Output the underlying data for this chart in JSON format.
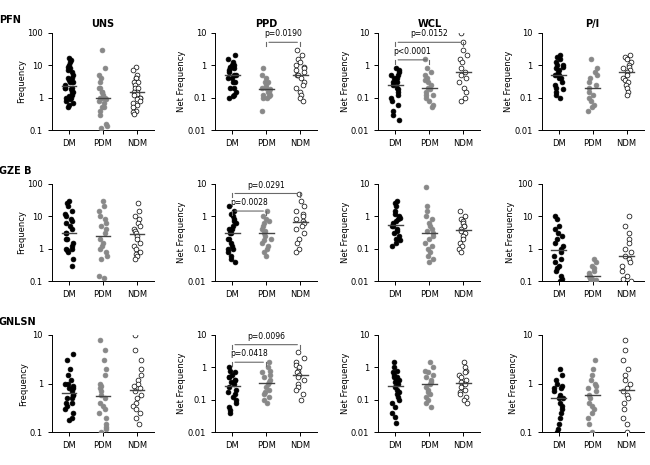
{
  "col_titles": [
    "UNS",
    "PPD",
    "WCL",
    "P/I"
  ],
  "row_titles": [
    "PFN",
    "GZE B",
    "GNLSN"
  ],
  "group_labels": [
    "DM",
    "PDM",
    "NDM"
  ],
  "group_colors": [
    "#000000",
    "#888888",
    "#ffffff"
  ],
  "group_edge_colors": [
    "#000000",
    "#888888",
    "#000000"
  ],
  "panels": {
    "PFN_UNS": {
      "ylim": [
        0.1,
        100
      ],
      "yticks": [
        0.1,
        1,
        10,
        100
      ],
      "ylabel": "Frequency"
    },
    "PFN_PPD": {
      "ylim": [
        0.01,
        10
      ],
      "yticks": [
        0.01,
        0.1,
        1,
        10
      ],
      "ylabel": "Net Frequency"
    },
    "PFN_WCL": {
      "ylim": [
        0.01,
        10
      ],
      "yticks": [
        0.01,
        0.1,
        1,
        10
      ],
      "ylabel": "Net Frequency"
    },
    "PFN_P/I": {
      "ylim": [
        0.01,
        10
      ],
      "yticks": [
        0.01,
        0.1,
        1,
        10
      ],
      "ylabel": "Net Frequency"
    },
    "GZE B_UNS": {
      "ylim": [
        0.1,
        100
      ],
      "yticks": [
        0.1,
        1,
        10,
        100
      ],
      "ylabel": "Frequency"
    },
    "GZE B_PPD": {
      "ylim": [
        0.01,
        10
      ],
      "yticks": [
        0.01,
        0.1,
        1,
        10
      ],
      "ylabel": "Net Frequency"
    },
    "GZE B_WCL": {
      "ylim": [
        0.01,
        10
      ],
      "yticks": [
        0.01,
        0.1,
        1,
        10
      ],
      "ylabel": "Net Frequency"
    },
    "GZE B_P/I": {
      "ylim": [
        0.1,
        100
      ],
      "yticks": [
        0.1,
        1,
        10,
        100
      ],
      "ylabel": "Net Frequency"
    },
    "GNLSN_UNS": {
      "ylim": [
        0.1,
        10
      ],
      "yticks": [
        0.1,
        1,
        10
      ],
      "ylabel": "Frequency"
    },
    "GNLSN_PPD": {
      "ylim": [
        0.01,
        10
      ],
      "yticks": [
        0.01,
        0.1,
        1,
        10
      ],
      "ylabel": "Net Frequency"
    },
    "GNLSN_WCL": {
      "ylim": [
        0.01,
        10
      ],
      "yticks": [
        0.01,
        0.1,
        1,
        10
      ],
      "ylabel": "Net Frequency"
    },
    "GNLSN_P/I": {
      "ylim": [
        0.1,
        10
      ],
      "yticks": [
        0.1,
        1,
        10
      ],
      "ylabel": "Net Frequency"
    }
  },
  "sig_info": {
    "PFN_PPD": [
      {
        "g1": 1,
        "g2": 2,
        "p": "p=0.0190",
        "level": 0
      }
    ],
    "PFN_WCL": [
      {
        "g1": 0,
        "g2": 2,
        "p": "p=0.0152",
        "level": 0
      },
      {
        "g1": 0,
        "g2": 1,
        "p": "p<0.0001",
        "level": 1
      }
    ],
    "GZE B_PPD": [
      {
        "g1": 0,
        "g2": 2,
        "p": "p=0.0291",
        "level": 0
      },
      {
        "g1": 0,
        "g2": 1,
        "p": "p=0.0028",
        "level": 1
      }
    ],
    "GNLSN_PPD": [
      {
        "g1": 0,
        "g2": 2,
        "p": "p=0.0096",
        "level": 0
      },
      {
        "g1": 0,
        "g2": 1,
        "p": "p=0.0418",
        "level": 1
      }
    ]
  },
  "data": {
    "PFN_UNS_DM": [
      16,
      14,
      12,
      10,
      9,
      8,
      7,
      6,
      5,
      4,
      4,
      3.5,
      3,
      3,
      2.5,
      2,
      2,
      2,
      1.8,
      1.5,
      1.5,
      1.2,
      1.1,
      1,
      1,
      0.9,
      0.8,
      0.7,
      0.6,
      0.5
    ],
    "PFN_UNS_PDM": [
      30,
      8,
      5,
      4,
      3,
      2,
      2,
      1.5,
      1.5,
      1.2,
      1,
      1,
      1,
      0.9,
      0.8,
      0.7,
      0.5,
      0.5,
      0.4,
      0.3,
      0.15,
      0.13,
      0.12
    ],
    "PFN_UNS_NDM": [
      9,
      7,
      5,
      4,
      4,
      3,
      3,
      3,
      2.5,
      2,
      2,
      1.5,
      1.5,
      1.3,
      1.2,
      1,
      1,
      0.9,
      0.8,
      0.7,
      0.6,
      0.5,
      0.4,
      0.35,
      0.32
    ],
    "PFN_PPD_DM": [
      2,
      1.5,
      1.2,
      1,
      1,
      0.9,
      0.8,
      0.8,
      0.7,
      0.6,
      0.5,
      0.5,
      0.4,
      0.4,
      0.3,
      0.3,
      0.2,
      0.2,
      0.15,
      0.12,
      0.11,
      0.1
    ],
    "PFN_PPD_PDM": [
      0.8,
      0.5,
      0.4,
      0.3,
      0.3,
      0.25,
      0.2,
      0.2,
      0.18,
      0.15,
      0.15,
      0.12,
      0.12,
      0.11,
      0.1,
      0.1,
      0.04
    ],
    "PFN_PPD_NDM": [
      3,
      2,
      1.5,
      1.2,
      1,
      0.9,
      0.8,
      0.7,
      0.6,
      0.5,
      0.5,
      0.4,
      0.3,
      0.25,
      0.2,
      0.15,
      0.12,
      0.1,
      0.08
    ],
    "PFN_WCL_DM": [
      0.8,
      0.7,
      0.6,
      0.5,
      0.5,
      0.4,
      0.4,
      0.35,
      0.3,
      0.3,
      0.25,
      0.2,
      0.18,
      0.15,
      0.12,
      0.1,
      0.08,
      0.06,
      0.04,
      0.03,
      0.02
    ],
    "PFN_WCL_PDM": [
      1.5,
      0.8,
      0.6,
      0.5,
      0.4,
      0.35,
      0.3,
      0.25,
      0.2,
      0.18,
      0.15,
      0.12,
      0.12,
      0.1,
      0.08,
      0.06,
      0.05
    ],
    "PFN_WCL_NDM": [
      10,
      5,
      3,
      2,
      1.5,
      1.2,
      0.8,
      0.6,
      0.5,
      0.4,
      0.3,
      0.2,
      0.15,
      0.1,
      0.08
    ],
    "PFN_P/I_DM": [
      2,
      1.8,
      1.5,
      1.2,
      1,
      1,
      0.9,
      0.8,
      0.7,
      0.6,
      0.5,
      0.5,
      0.4,
      0.4,
      0.3,
      0.25,
      0.2,
      0.18,
      0.15,
      0.12,
      0.1
    ],
    "PFN_P/I_PDM": [
      1.5,
      0.8,
      0.6,
      0.5,
      0.4,
      0.3,
      0.25,
      0.2,
      0.15,
      0.12,
      0.1,
      0.08,
      0.06,
      0.05,
      0.04
    ],
    "PFN_P/I_NDM": [
      2,
      1.8,
      1.5,
      1.2,
      1,
      0.9,
      0.8,
      0.7,
      0.6,
      0.5,
      0.4,
      0.35,
      0.3,
      0.25,
      0.2,
      0.15,
      0.12
    ],
    "GZE B_UNS_DM": [
      30,
      25,
      20,
      15,
      12,
      10,
      8,
      7,
      6,
      5,
      4,
      3,
      3,
      2,
      2,
      1.5,
      1.2,
      1,
      1,
      0.9,
      0.8,
      0.5,
      0.3
    ],
    "GZE B_UNS_PDM": [
      30,
      20,
      15,
      10,
      8,
      6,
      5,
      4,
      3,
      2,
      1.5,
      1.2,
      1,
      0.8,
      0.6,
      0.5,
      0.15,
      0.13
    ],
    "GZE B_UNS_NDM": [
      25,
      15,
      10,
      8,
      6,
      5,
      4,
      3.5,
      3,
      2.5,
      2,
      1.5,
      1.2,
      1,
      0.8,
      0.7,
      0.6,
      0.5
    ],
    "GZE B_PPD_DM": [
      2,
      1.5,
      1.2,
      1,
      0.8,
      0.7,
      0.6,
      0.5,
      0.4,
      0.4,
      0.3,
      0.3,
      0.2,
      0.2,
      0.15,
      0.12,
      0.1,
      0.1,
      0.08,
      0.06,
      0.05,
      0.04
    ],
    "GZE B_PPD_PDM": [
      1.5,
      1,
      0.8,
      0.7,
      0.6,
      0.5,
      0.4,
      0.35,
      0.3,
      0.25,
      0.2,
      0.18,
      0.15,
      0.12,
      0.1,
      0.08,
      0.06
    ],
    "GZE B_PPD_NDM": [
      5,
      3,
      2,
      1.5,
      1.2,
      1,
      0.8,
      0.7,
      0.6,
      0.5,
      0.4,
      0.3,
      0.2,
      0.15,
      0.1,
      0.08
    ],
    "GZE B_WCL_DM": [
      3,
      2.5,
      2,
      1.5,
      1.2,
      1,
      0.9,
      0.8,
      0.7,
      0.6,
      0.5,
      0.5,
      0.4,
      0.35,
      0.3,
      0.25,
      0.2,
      0.18,
      0.15,
      0.12
    ],
    "GZE B_WCL_PDM": [
      8,
      2,
      1.5,
      1,
      0.8,
      0.6,
      0.5,
      0.4,
      0.35,
      0.3,
      0.25,
      0.2,
      0.15,
      0.12,
      0.1,
      0.08,
      0.06,
      0.05,
      0.04
    ],
    "GZE B_WCL_NDM": [
      1.5,
      1,
      0.8,
      0.7,
      0.6,
      0.5,
      0.5,
      0.4,
      0.35,
      0.3,
      0.25,
      0.2,
      0.15,
      0.12,
      0.1,
      0.08
    ],
    "GZE B_P/I_DM": [
      10,
      8,
      5,
      4,
      3,
      2.5,
      2,
      1.5,
      1.2,
      1,
      0.8,
      0.6,
      0.5,
      0.4,
      0.3,
      0.25,
      0.2,
      0.15,
      0.12,
      0.1
    ],
    "GZE B_P/I_PDM": [
      0.5,
      0.4,
      0.3,
      0.25,
      0.2,
      0.18,
      0.15,
      0.13,
      0.12,
      0.11,
      0.1,
      0.1,
      0.13,
      0.15
    ],
    "GZE B_P/I_NDM": [
      10,
      5,
      3,
      2,
      1.5,
      1,
      0.8,
      0.6,
      0.5,
      0.4,
      0.3,
      0.2,
      0.15,
      0.12,
      0.1
    ],
    "GNLSN_UNS_DM": [
      4,
      3,
      2,
      1.5,
      1.2,
      1,
      1,
      0.9,
      0.8,
      0.8,
      0.7,
      0.6,
      0.6,
      0.5,
      0.5,
      0.4,
      0.4,
      0.35,
      0.3,
      0.25,
      0.2,
      0.18
    ],
    "GNLSN_UNS_PDM": [
      8,
      5,
      3,
      2,
      1.5,
      1,
      0.9,
      0.8,
      0.7,
      0.6,
      0.5,
      0.4,
      0.35,
      0.3,
      0.25,
      0.2,
      0.15,
      0.12,
      0.1,
      0.13
    ],
    "GNLSN_UNS_NDM": [
      10,
      5,
      3,
      2,
      1.5,
      1.2,
      1,
      0.9,
      0.8,
      0.7,
      0.6,
      0.5,
      0.4,
      0.35,
      0.3,
      0.25,
      0.2,
      0.15
    ],
    "GNLSN_PPD_DM": [
      1,
      0.8,
      0.7,
      0.6,
      0.5,
      0.5,
      0.4,
      0.4,
      0.35,
      0.3,
      0.25,
      0.2,
      0.18,
      0.15,
      0.12,
      0.1,
      0.08,
      0.06,
      0.05,
      0.04
    ],
    "GNLSN_PPD_PDM": [
      1.5,
      1,
      0.8,
      0.7,
      0.6,
      0.5,
      0.4,
      0.35,
      0.3,
      0.25,
      0.2,
      0.18,
      0.15,
      0.12,
      0.1,
      0.08
    ],
    "GNLSN_PPD_NDM": [
      3,
      2,
      1.5,
      1.2,
      1,
      0.8,
      0.7,
      0.6,
      0.5,
      0.4,
      0.3,
      0.25,
      0.2,
      0.15,
      0.1
    ],
    "GNLSN_WCL_DM": [
      1.5,
      1,
      0.8,
      0.7,
      0.6,
      0.5,
      0.5,
      0.4,
      0.4,
      0.35,
      0.3,
      0.25,
      0.2,
      0.18,
      0.15,
      0.12,
      0.1,
      0.08,
      0.06,
      0.04,
      0.03,
      0.02
    ],
    "GNLSN_WCL_PDM": [
      1.5,
      1,
      0.8,
      0.7,
      0.6,
      0.5,
      0.4,
      0.35,
      0.3,
      0.25,
      0.2,
      0.18,
      0.15,
      0.12,
      0.1,
      0.08,
      0.06
    ],
    "GNLSN_WCL_NDM": [
      1.5,
      1,
      0.8,
      0.7,
      0.6,
      0.5,
      0.4,
      0.35,
      0.3,
      0.25,
      0.2,
      0.18,
      0.15,
      0.12,
      0.1,
      0.08
    ],
    "GNLSN_P/I_DM": [
      2,
      1.5,
      1.2,
      1,
      0.9,
      0.8,
      0.8,
      0.7,
      0.6,
      0.5,
      0.5,
      0.4,
      0.35,
      0.3,
      0.25,
      0.2,
      0.15,
      0.12,
      0.1
    ],
    "GNLSN_P/I_PDM": [
      3,
      2,
      1.5,
      1.2,
      1,
      0.9,
      0.8,
      0.7,
      0.6,
      0.5,
      0.4,
      0.35,
      0.3,
      0.25,
      0.2,
      0.15,
      0.1
    ],
    "GNLSN_P/I_NDM": [
      8,
      5,
      3,
      2,
      1.5,
      1.2,
      1,
      0.8,
      0.7,
      0.6,
      0.5,
      0.4,
      0.3,
      0.2,
      0.15,
      0.1
    ]
  }
}
